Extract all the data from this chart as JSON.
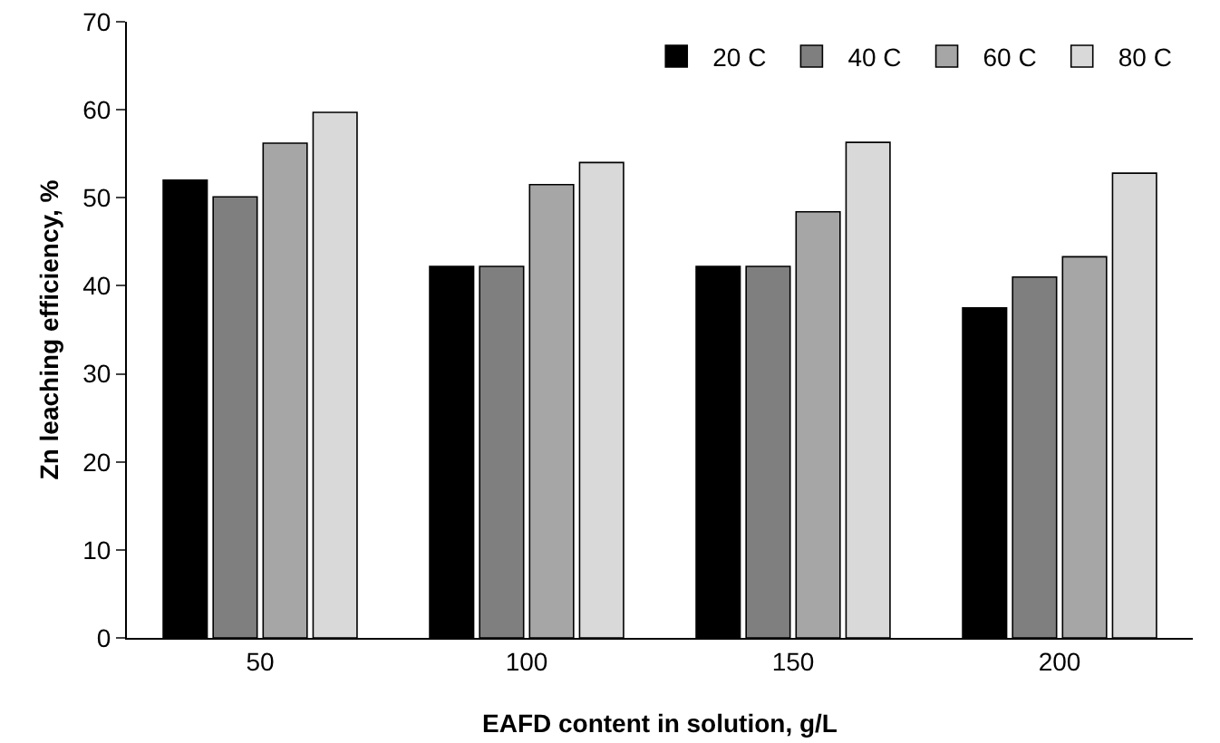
{
  "chart_data": {
    "type": "bar",
    "xlabel": "EAFD content in solution, g/L",
    "ylabel": "Zn leaching efficiency, %",
    "categories": [
      "50",
      "100",
      "150",
      "200"
    ],
    "series": [
      {
        "name": "20 C",
        "color": "#000000",
        "values": [
          52,
          42.2,
          42.2,
          37.5
        ]
      },
      {
        "name": "40 C",
        "color": "#7f7f7f",
        "values": [
          50.1,
          42.2,
          42.2,
          41
        ]
      },
      {
        "name": "60 C",
        "color": "#a6a6a6",
        "values": [
          56.2,
          51.5,
          48.4,
          43.3
        ]
      },
      {
        "name": "80 C",
        "color": "#d9d9d9",
        "values": [
          59.7,
          54,
          56.3,
          52.8
        ]
      }
    ],
    "ylim": [
      0,
      70
    ],
    "yticks": [
      0,
      10,
      20,
      30,
      40,
      50,
      60,
      70
    ],
    "grid": false,
    "legend": "top right"
  }
}
